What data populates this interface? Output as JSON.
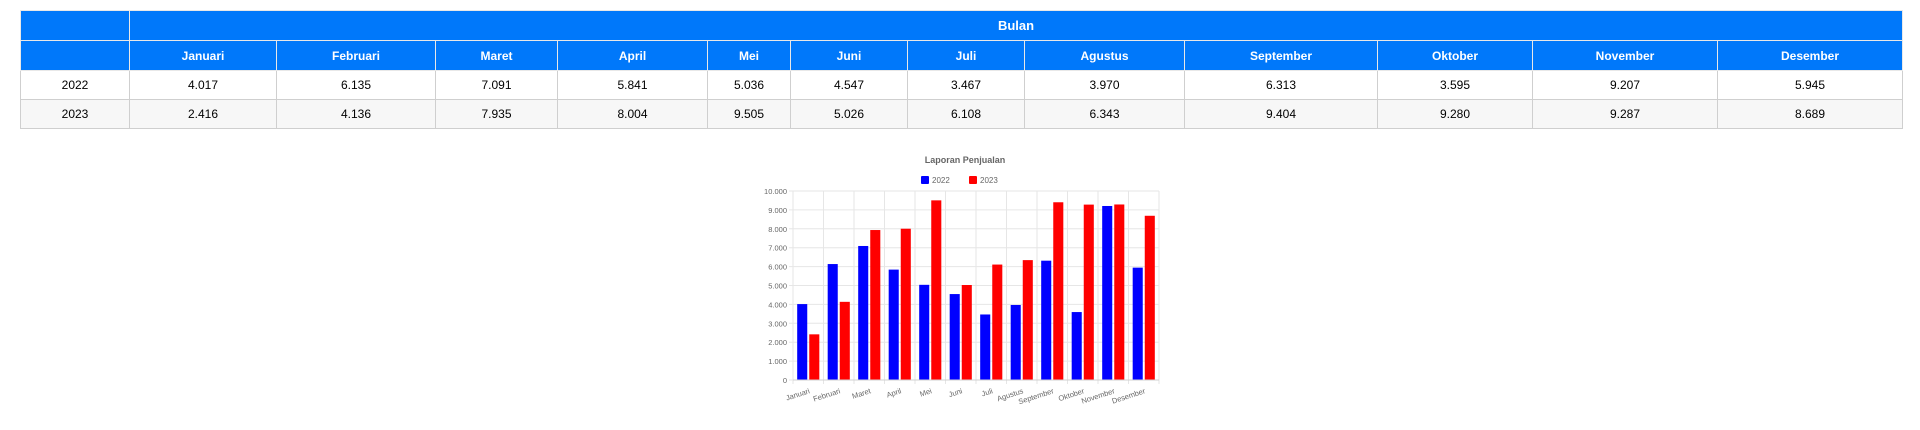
{
  "table": {
    "header": "Bulan",
    "months": [
      "Januari",
      "Februari",
      "Maret",
      "April",
      "Mei",
      "Juni",
      "Juli",
      "Agustus",
      "September",
      "Oktober",
      "November",
      "Desember"
    ],
    "rows": [
      {
        "year": "2022",
        "values": [
          "4.017",
          "6.135",
          "7.091",
          "5.841",
          "5.036",
          "4.547",
          "3.467",
          "3.970",
          "6.313",
          "3.595",
          "9.207",
          "5.945"
        ]
      },
      {
        "year": "2023",
        "values": [
          "2.416",
          "4.136",
          "7.935",
          "8.004",
          "9.505",
          "5.026",
          "6.108",
          "6.343",
          "9.404",
          "9.280",
          "9.287",
          "8.689"
        ]
      }
    ]
  },
  "chart_data": {
    "type": "bar",
    "title": "Laporan Penjualan",
    "categories": [
      "Januari",
      "Februari",
      "Maret",
      "April",
      "Mei",
      "Juni",
      "Juli",
      "Agustus",
      "September",
      "Oktober",
      "November",
      "Desember"
    ],
    "series": [
      {
        "name": "2022",
        "color": "#0000ff",
        "values": [
          4017,
          6135,
          7091,
          5841,
          5036,
          4547,
          3467,
          3970,
          6313,
          3595,
          9207,
          5945
        ]
      },
      {
        "name": "2023",
        "color": "#ff0000",
        "values": [
          2416,
          4136,
          7935,
          8004,
          9505,
          5026,
          6108,
          6343,
          9404,
          9280,
          9287,
          8689
        ]
      }
    ],
    "ylim": [
      0,
      10000
    ],
    "yticks": [
      "0",
      "1.000",
      "2.000",
      "3.000",
      "4.000",
      "5.000",
      "6.000",
      "7.000",
      "8.000",
      "9.000",
      "10.000"
    ],
    "grid": true,
    "legend": "top"
  }
}
